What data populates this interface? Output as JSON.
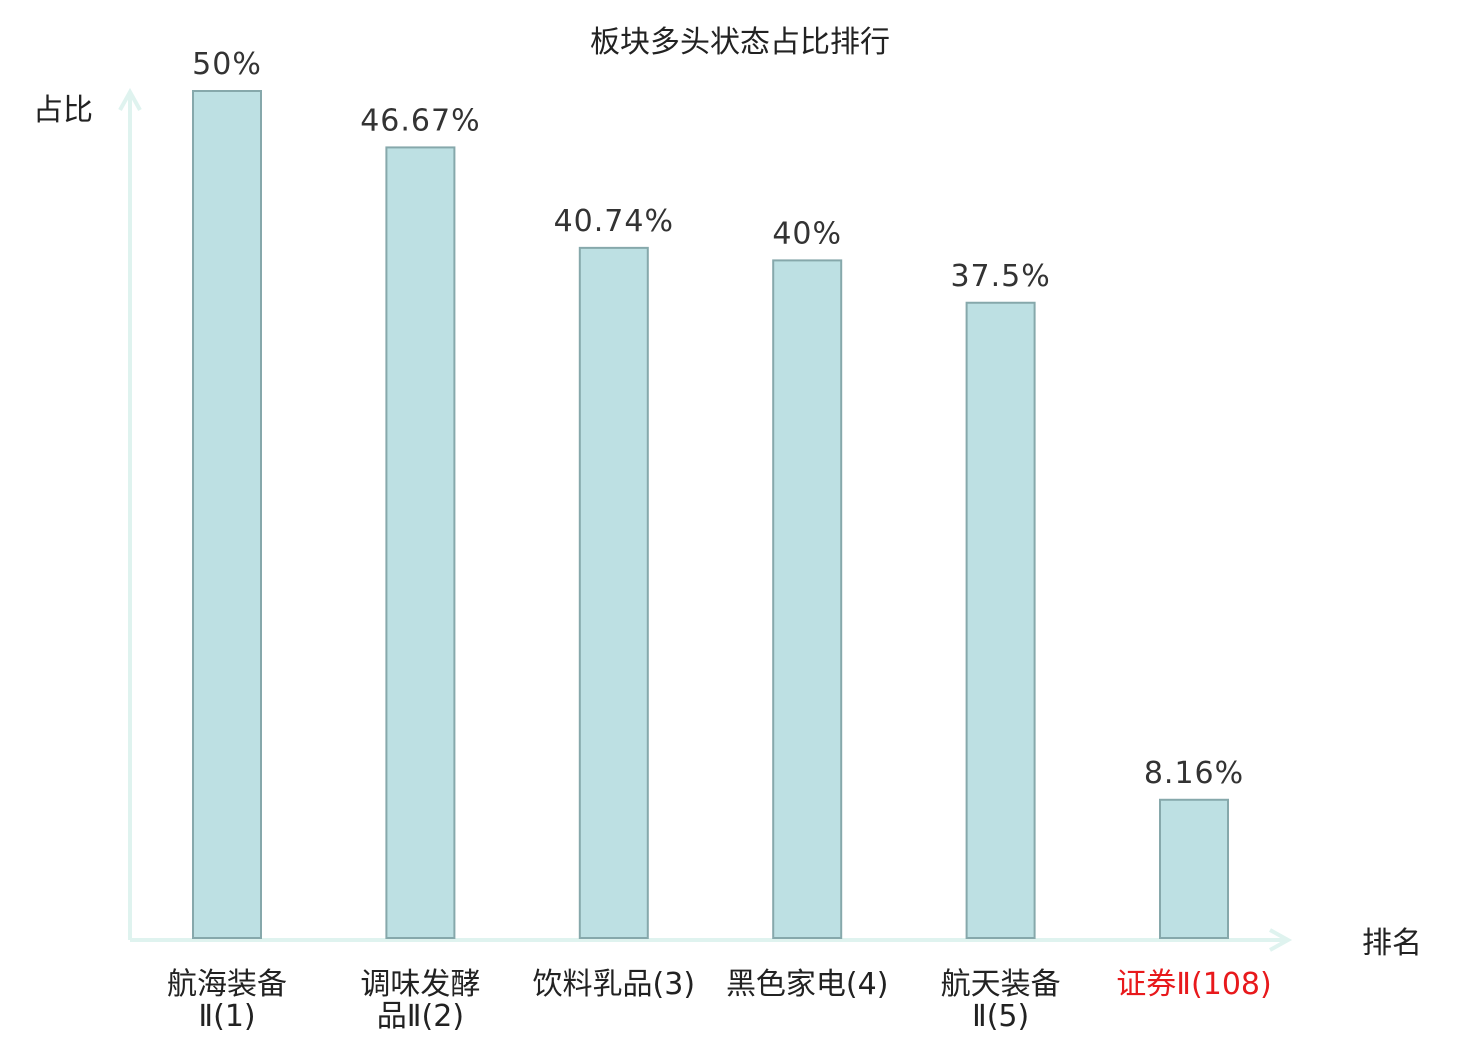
{
  "chart_data": {
    "type": "bar",
    "title": "板块多头状态占比排行",
    "ylabel": "占比",
    "xlabel": "排名",
    "ylim": [
      0,
      50
    ],
    "categories": [
      [
        "航海装备",
        "Ⅱ(1)"
      ],
      [
        "调味发酵",
        "品Ⅱ(2)"
      ],
      [
        "饮料乳品(3)"
      ],
      [
        "黑色家电(4)"
      ],
      [
        "航天装备",
        "Ⅱ(5)"
      ],
      [
        "证券Ⅱ(108)"
      ]
    ],
    "values": [
      50,
      46.67,
      40.74,
      40,
      37.5,
      8.16
    ],
    "value_labels": [
      "50%",
      "46.67%",
      "40.74%",
      "40%",
      "37.5%",
      "8.16%"
    ],
    "highlight_index": 5,
    "grid": false,
    "colors": {
      "bar_fill": "#bde0e3",
      "bar_stroke": "#86a8ab",
      "axis": "#dff3ef",
      "highlight_text": "#e8191c"
    }
  }
}
